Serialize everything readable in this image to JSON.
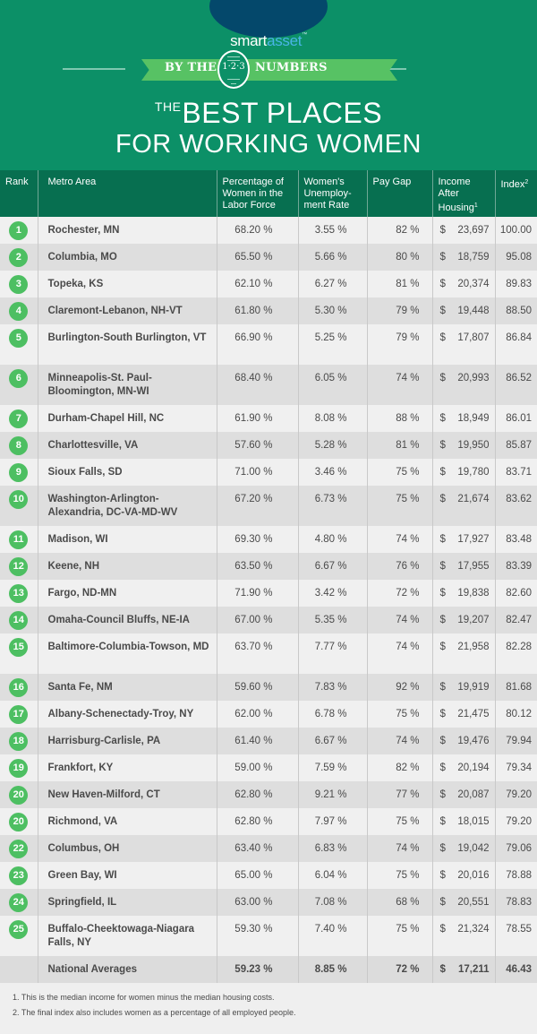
{
  "brand": {
    "part1": "smart",
    "part2": "asset",
    "tm": "™",
    "oval_color": "#04486b",
    "accent_color": "#4ab4e6"
  },
  "banner": {
    "bg_color": "#0c9067",
    "ribbon_left": "BY THE",
    "ribbon_numbers": "1·2·3",
    "ribbon_right": "NUMBERS",
    "ribbon_color": "#57c264",
    "title_prefix": "THE",
    "title_line1": "BEST PLACES",
    "title_line2": "FOR WORKING WOMEN"
  },
  "table": {
    "header_color": "#076f50",
    "badge_color": "#4dbf62",
    "columns": [
      {
        "label": "Rank",
        "sup": ""
      },
      {
        "label": "Metro Area",
        "sup": ""
      },
      {
        "label": "Percentage of Women in the Labor Force",
        "sup": ""
      },
      {
        "label": "Women's Unemploy-ment Rate",
        "sup": ""
      },
      {
        "label": "Pay Gap",
        "sup": ""
      },
      {
        "label": "Income After Housing",
        "sup": "1"
      },
      {
        "label": "Index",
        "sup": "2"
      }
    ],
    "rows": [
      {
        "rank": "1",
        "metro": "Rochester, MN",
        "labor_force": "68.20 %",
        "unemployment": "3.55 %",
        "pay_gap": "82 %",
        "income": "23,697",
        "index": "100.00"
      },
      {
        "rank": "2",
        "metro": "Columbia, MO",
        "labor_force": "65.50 %",
        "unemployment": "5.66 %",
        "pay_gap": "80 %",
        "income": "18,759",
        "index": "95.08"
      },
      {
        "rank": "3",
        "metro": "Topeka, KS",
        "labor_force": "62.10 %",
        "unemployment": "6.27 %",
        "pay_gap": "81 %",
        "income": "20,374",
        "index": "89.83"
      },
      {
        "rank": "4",
        "metro": "Claremont-Lebanon, NH-VT",
        "labor_force": "61.80 %",
        "unemployment": "5.30 %",
        "pay_gap": "79 %",
        "income": "19,448",
        "index": "88.50"
      },
      {
        "rank": "5",
        "metro": "Burlington-South Burlington, VT",
        "labor_force": "66.90 %",
        "unemployment": "5.25 %",
        "pay_gap": "79 %",
        "income": "17,807",
        "index": "86.84"
      },
      {
        "rank": "6",
        "metro": "Minneapolis-St. Paul-Bloomington, MN-WI",
        "labor_force": "68.40 %",
        "unemployment": "6.05 %",
        "pay_gap": "74 %",
        "income": "20,993",
        "index": "86.52"
      },
      {
        "rank": "7",
        "metro": "Durham-Chapel Hill, NC",
        "labor_force": "61.90 %",
        "unemployment": "8.08 %",
        "pay_gap": "88 %",
        "income": "18,949",
        "index": "86.01"
      },
      {
        "rank": "8",
        "metro": "Charlottesville, VA",
        "labor_force": "57.60 %",
        "unemployment": "5.28 %",
        "pay_gap": "81 %",
        "income": "19,950",
        "index": "85.87"
      },
      {
        "rank": "9",
        "metro": "Sioux Falls, SD",
        "labor_force": "71.00 %",
        "unemployment": "3.46 %",
        "pay_gap": "75 %",
        "income": "19,780",
        "index": "83.71"
      },
      {
        "rank": "10",
        "metro": "Washington-Arlington-Alexandria, DC-VA-MD-WV",
        "labor_force": "67.20 %",
        "unemployment": "6.73 %",
        "pay_gap": "75 %",
        "income": "21,674",
        "index": "83.62"
      },
      {
        "rank": "11",
        "metro": "Madison, WI",
        "labor_force": "69.30 %",
        "unemployment": "4.80 %",
        "pay_gap": "74 %",
        "income": "17,927",
        "index": "83.48"
      },
      {
        "rank": "12",
        "metro": "Keene, NH",
        "labor_force": "63.50 %",
        "unemployment": "6.67 %",
        "pay_gap": "76 %",
        "income": "17,955",
        "index": "83.39"
      },
      {
        "rank": "13",
        "metro": "Fargo, ND-MN",
        "labor_force": "71.90 %",
        "unemployment": "3.42 %",
        "pay_gap": "72 %",
        "income": "19,838",
        "index": "82.60"
      },
      {
        "rank": "14",
        "metro": "Omaha-Council Bluffs, NE-IA",
        "labor_force": "67.00 %",
        "unemployment": "5.35 %",
        "pay_gap": "74 %",
        "income": "19,207",
        "index": "82.47"
      },
      {
        "rank": "15",
        "metro": "Baltimore-Columbia-Towson, MD",
        "labor_force": "63.70 %",
        "unemployment": "7.77 %",
        "pay_gap": "74 %",
        "income": "21,958",
        "index": "82.28"
      },
      {
        "rank": "16",
        "metro": "Santa Fe, NM",
        "labor_force": "59.60 %",
        "unemployment": "7.83 %",
        "pay_gap": "92 %",
        "income": "19,919",
        "index": "81.68"
      },
      {
        "rank": "17",
        "metro": "Albany-Schenectady-Troy, NY",
        "labor_force": "62.00 %",
        "unemployment": "6.78 %",
        "pay_gap": "75 %",
        "income": "21,475",
        "index": "80.12"
      },
      {
        "rank": "18",
        "metro": "Harrisburg-Carlisle, PA",
        "labor_force": "61.40 %",
        "unemployment": "6.67 %",
        "pay_gap": "74 %",
        "income": "19,476",
        "index": "79.94"
      },
      {
        "rank": "19",
        "metro": "Frankfort, KY",
        "labor_force": "59.00 %",
        "unemployment": "7.59 %",
        "pay_gap": "82 %",
        "income": "20,194",
        "index": "79.34"
      },
      {
        "rank": "20",
        "metro": "New Haven-Milford, CT",
        "labor_force": "62.80 %",
        "unemployment": "9.21 %",
        "pay_gap": "77 %",
        "income": "20,087",
        "index": "79.20"
      },
      {
        "rank": "20",
        "metro": "Richmond, VA",
        "labor_force": "62.80 %",
        "unemployment": "7.97 %",
        "pay_gap": "75 %",
        "income": "18,015",
        "index": "79.20"
      },
      {
        "rank": "22",
        "metro": "Columbus, OH",
        "labor_force": "63.40 %",
        "unemployment": "6.83 %",
        "pay_gap": "74 %",
        "income": "19,042",
        "index": "79.06"
      },
      {
        "rank": "23",
        "metro": "Green Bay, WI",
        "labor_force": "65.00 %",
        "unemployment": "6.04 %",
        "pay_gap": "75 %",
        "income": "20,016",
        "index": "78.88"
      },
      {
        "rank": "24",
        "metro": "Springfield, IL",
        "labor_force": "63.00 %",
        "unemployment": "7.08 %",
        "pay_gap": "68 %",
        "income": "20,551",
        "index": "78.83"
      },
      {
        "rank": "25",
        "metro": "Buffalo-Cheektowaga-Niagara Falls, NY",
        "labor_force": "59.30 %",
        "unemployment": "7.40 %",
        "pay_gap": "75 %",
        "income": "21,324",
        "index": "78.55"
      }
    ],
    "total": {
      "metro": "National Averages",
      "labor_force": "59.23 %",
      "unemployment": "8.85 %",
      "pay_gap": "72 %",
      "income": "17,211",
      "index": "46.43"
    },
    "currency": "$"
  },
  "footnotes": [
    "1.  This is the median income for women minus the median housing costs.",
    "2. The final index also includes women as a percentage of all employed people."
  ]
}
